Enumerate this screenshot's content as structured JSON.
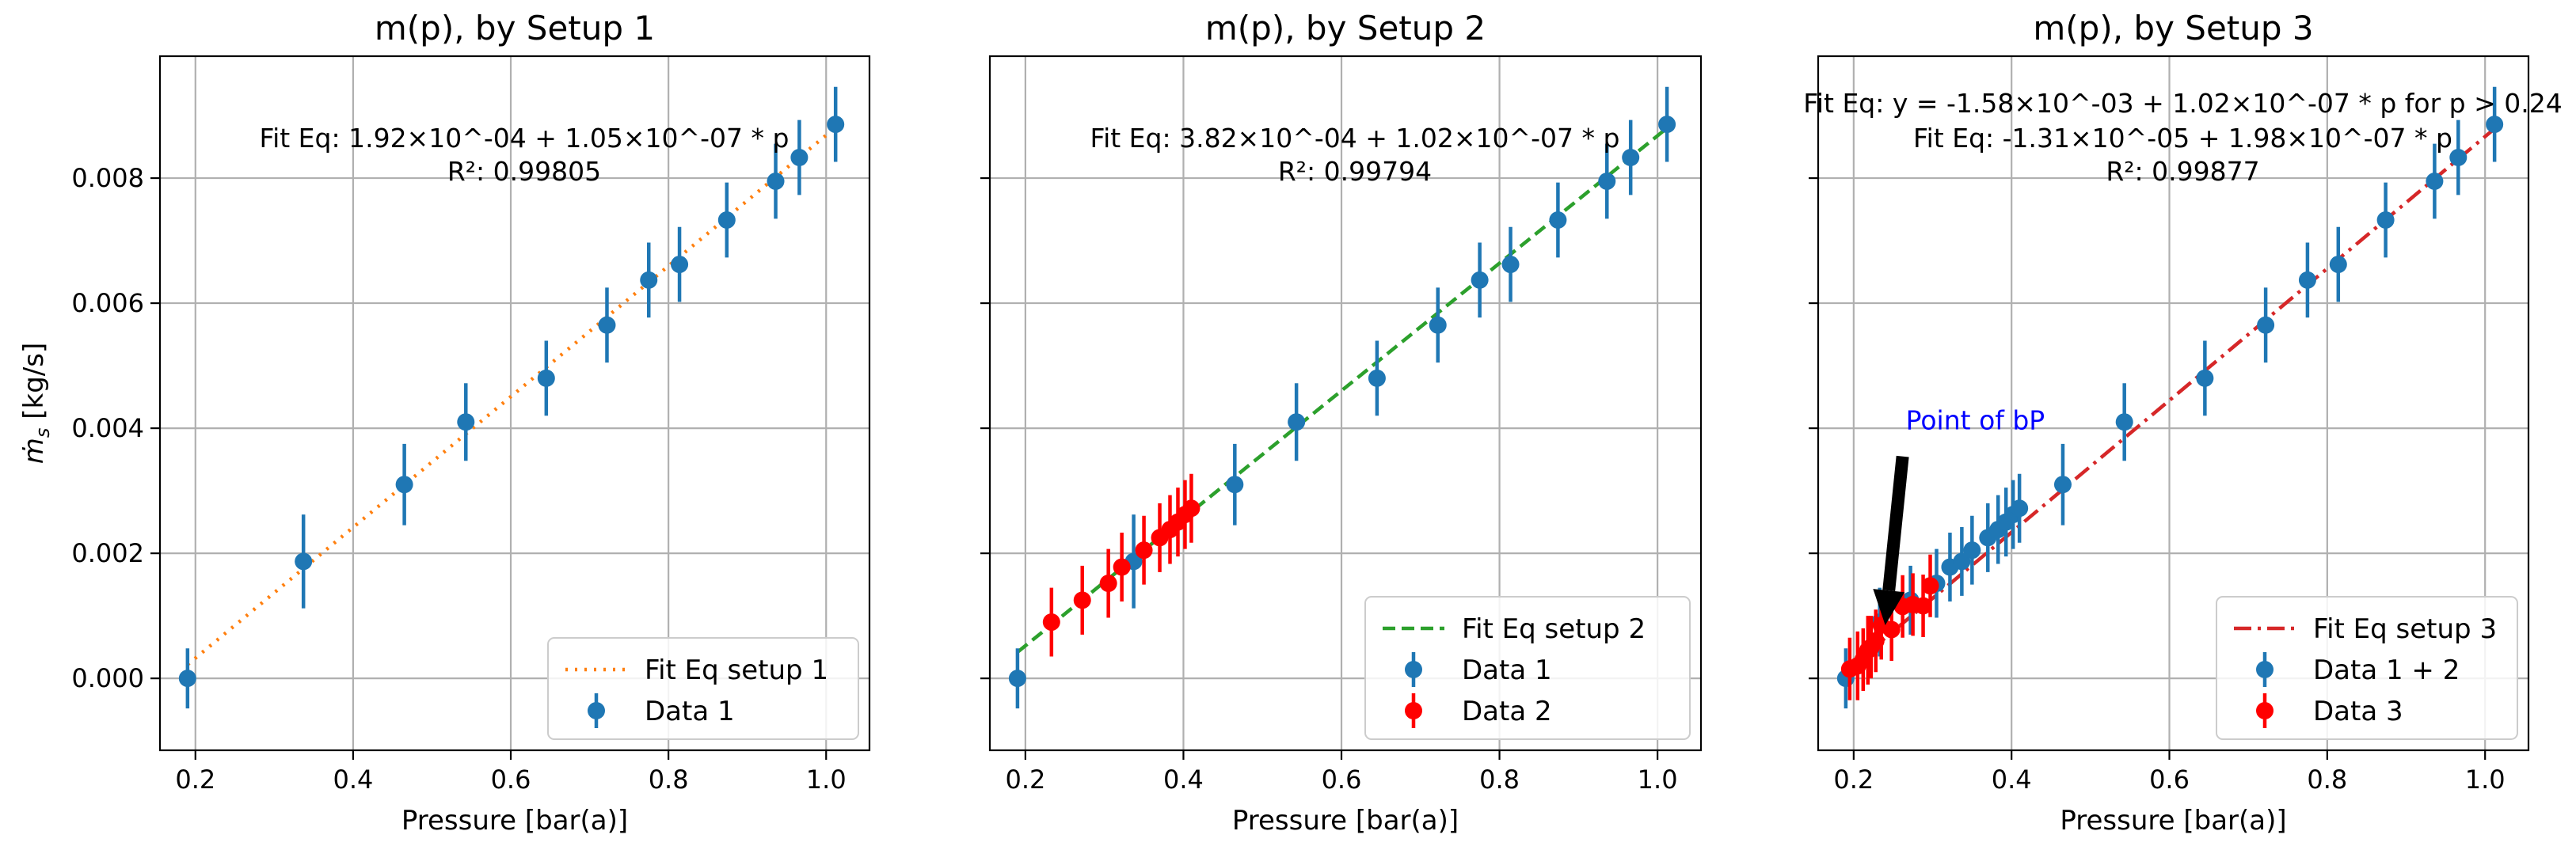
{
  "colors": {
    "data1": "#1f77b4",
    "data2": "#ff0000",
    "fit1": "#ff7f0e",
    "fit2": "#2ca02c",
    "fit3": "#d62728",
    "arrow_text": "#0000ff"
  },
  "chart_data": [
    {
      "type": "scatter",
      "title": "m(p), by Setup 1",
      "xlabel": "Pressure [bar(a)]",
      "ylabel": "ṁ",
      "ylabel_sub": "s",
      "ylabel_unit": " [kg/s]",
      "xlim": [
        0.155,
        1.055
      ],
      "ylim": [
        -0.00115,
        0.00995
      ],
      "xticks": [
        0.2,
        0.4,
        0.6,
        0.8,
        1.0
      ],
      "xtick_labels": [
        "0.2",
        "0.4",
        "0.6",
        "0.8",
        "1.0"
      ],
      "yticks": [
        0.0,
        0.002,
        0.004,
        0.006,
        0.008
      ],
      "ytick_labels": [
        "0.000",
        "0.002",
        "0.004",
        "0.006",
        "0.008"
      ],
      "annotation": [
        "Fit Eq: 1.92×10^-04 + 1.05×10^-07 * p",
        "R²: 0.99805"
      ],
      "fit": {
        "label": "Fit Eq setup 1",
        "style": "dotted",
        "color_key": "fit1",
        "x": [
          0.19,
          1.01
        ],
        "y": [
          0.00022,
          0.00879
        ]
      },
      "series": [
        {
          "name": "Data 1",
          "color_key": "data1",
          "x": [
            0.19,
            0.337,
            0.465,
            0.543,
            0.645,
            0.722,
            0.775,
            0.814,
            0.874,
            0.936,
            0.966,
            1.012
          ],
          "y": [
            0.0,
            0.00187,
            0.0031,
            0.0041,
            0.0048,
            0.00565,
            0.00637,
            0.00662,
            0.00733,
            0.00795,
            0.00833,
            0.00886
          ],
          "err": [
            0.00048,
            0.00075,
            0.00065,
            0.00062,
            0.0006,
            0.0006,
            0.0006,
            0.0006,
            0.0006,
            0.0006,
            0.0006,
            0.0006
          ]
        }
      ],
      "legend": {
        "position": "lower-right",
        "entries": [
          {
            "label": "Fit Eq setup 1",
            "kind": "line",
            "style": "dotted",
            "color_key": "fit1"
          },
          {
            "label": "Data 1",
            "kind": "errorbar",
            "color_key": "data1"
          }
        ]
      }
    },
    {
      "type": "scatter",
      "title": "m(p), by Setup 2",
      "xlabel": "Pressure [bar(a)]",
      "xlim": [
        0.155,
        1.055
      ],
      "ylim": [
        -0.00115,
        0.00995
      ],
      "xticks": [
        0.2,
        0.4,
        0.6,
        0.8,
        1.0
      ],
      "xtick_labels": [
        "0.2",
        "0.4",
        "0.6",
        "0.8",
        "1.0"
      ],
      "yticks": [
        0.0,
        0.002,
        0.004,
        0.006,
        0.008
      ],
      "annotation": [
        "Fit Eq: 3.82×10^-04 + 1.02×10^-07 * p",
        "R²: 0.99794"
      ],
      "fit": {
        "label": "Fit Eq setup 2",
        "style": "dashed",
        "color_key": "fit2",
        "x": [
          0.19,
          1.01
        ],
        "y": [
          0.00042,
          0.00878
        ]
      },
      "series": [
        {
          "name": "Data 1",
          "color_key": "data1",
          "x": [
            0.19,
            0.337,
            0.465,
            0.543,
            0.645,
            0.722,
            0.775,
            0.814,
            0.874,
            0.936,
            0.966,
            1.012
          ],
          "y": [
            0.0,
            0.00187,
            0.0031,
            0.0041,
            0.0048,
            0.00565,
            0.00637,
            0.00662,
            0.00733,
            0.00795,
            0.00833,
            0.00886
          ],
          "err": [
            0.00048,
            0.00075,
            0.00065,
            0.00062,
            0.0006,
            0.0006,
            0.0006,
            0.0006,
            0.0006,
            0.0006,
            0.0006,
            0.0006
          ]
        },
        {
          "name": "Data 2",
          "color_key": "data2",
          "x": [
            0.233,
            0.272,
            0.305,
            0.322,
            0.35,
            0.37,
            0.383,
            0.393,
            0.402,
            0.41
          ],
          "y": [
            0.0009,
            0.00125,
            0.00152,
            0.00178,
            0.00205,
            0.00225,
            0.00238,
            0.0025,
            0.00262,
            0.00272
          ],
          "err": [
            0.00055,
            0.00055,
            0.00055,
            0.00055,
            0.00055,
            0.00055,
            0.00055,
            0.00055,
            0.00055,
            0.00055
          ]
        }
      ],
      "legend": {
        "position": "lower-right",
        "entries": [
          {
            "label": "Fit Eq setup 2",
            "kind": "line",
            "style": "dashed",
            "color_key": "fit2"
          },
          {
            "label": "Data 1",
            "kind": "errorbar",
            "color_key": "data1"
          },
          {
            "label": "Data 2",
            "kind": "errorbar",
            "color_key": "data2"
          }
        ]
      }
    },
    {
      "type": "scatter",
      "title": "m(p), by Setup 3",
      "xlabel": "Pressure [bar(a)]",
      "xlim": [
        0.155,
        1.055
      ],
      "ylim": [
        -0.00115,
        0.00995
      ],
      "xticks": [
        0.2,
        0.4,
        0.6,
        0.8,
        1.0
      ],
      "xtick_labels": [
        "0.2",
        "0.4",
        "0.6",
        "0.8",
        "1.0"
      ],
      "yticks": [
        0.0,
        0.002,
        0.004,
        0.006,
        0.008
      ],
      "annotation": [
        "Fit Eq: y = -1.58×10^-03 + 1.02×10^-07 * p for p > 0.24",
        "Fit Eq: -1.31×10^-05 + 1.98×10^-07 * p",
        "R²: 0.99877"
      ],
      "arrow_label": "Point of bP",
      "arrow": {
        "from": [
          0.262,
          0.00355
        ],
        "to": [
          0.24,
          0.00085
        ]
      },
      "fit": {
        "label": "Fit Eq setup 3",
        "style": "dashdot",
        "color_key": "fit3",
        "x": [
          0.19,
          1.01
        ],
        "y": [
          0.00012,
          0.00877
        ]
      },
      "series": [
        {
          "name": "Data 1 + 2",
          "color_key": "data1",
          "x": [
            0.19,
            0.233,
            0.272,
            0.305,
            0.322,
            0.337,
            0.35,
            0.37,
            0.383,
            0.393,
            0.402,
            0.41,
            0.465,
            0.543,
            0.645,
            0.722,
            0.775,
            0.814,
            0.874,
            0.936,
            0.966,
            1.012
          ],
          "y": [
            0.0,
            0.0009,
            0.00125,
            0.00152,
            0.00178,
            0.00187,
            0.00205,
            0.00225,
            0.00238,
            0.0025,
            0.00262,
            0.00272,
            0.0031,
            0.0041,
            0.0048,
            0.00565,
            0.00637,
            0.00662,
            0.00733,
            0.00795,
            0.00833,
            0.00886
          ],
          "err": [
            0.00048,
            0.00055,
            0.00055,
            0.00055,
            0.00055,
            0.00055,
            0.00055,
            0.00055,
            0.00055,
            0.00055,
            0.00055,
            0.00055,
            0.00065,
            0.00062,
            0.0006,
            0.0006,
            0.0006,
            0.0006,
            0.0006,
            0.0006,
            0.0006,
            0.0006
          ]
        },
        {
          "name": "Data 3",
          "color_key": "data2",
          "x": [
            0.195,
            0.205,
            0.212,
            0.218,
            0.222,
            0.228,
            0.235,
            0.248,
            0.262,
            0.275,
            0.288,
            0.297
          ],
          "y": [
            0.00015,
            0.0002,
            0.0003,
            0.00045,
            0.0005,
            0.0006,
            0.00085,
            0.00078,
            0.00115,
            0.00118,
            0.00116,
            0.00148
          ],
          "err": [
            0.0005,
            0.00055,
            0.0005,
            0.00055,
            0.0005,
            0.0005,
            0.00055,
            0.0005,
            0.0005,
            0.0005,
            0.0005,
            0.0005
          ]
        }
      ],
      "legend": {
        "position": "lower-right",
        "entries": [
          {
            "label": "Fit Eq setup 3",
            "kind": "line",
            "style": "dashdot",
            "color_key": "fit3"
          },
          {
            "label": "Data 1 + 2",
            "kind": "errorbar",
            "color_key": "data1"
          },
          {
            "label": "Data 3",
            "kind": "errorbar",
            "color_key": "data2"
          }
        ]
      }
    }
  ]
}
